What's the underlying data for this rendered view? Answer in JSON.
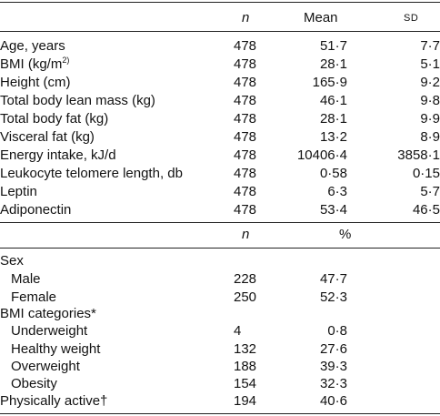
{
  "table1": {
    "headers": {
      "n": "n",
      "mean": "Mean",
      "sd": "SD"
    },
    "rows": [
      {
        "label": "Age, years",
        "n": "478",
        "mean": "51·7",
        "sd": "7·7"
      },
      {
        "label_pre": "BMI (kg/m",
        "label_sup": "2)",
        "label_post": ")",
        "n": "478",
        "mean": "28·1",
        "sd": "5·1"
      },
      {
        "label": "Height (cm)",
        "n": "478",
        "mean": "165·9",
        "sd": "9·2"
      },
      {
        "label": "Total body lean mass (kg)",
        "n": "478",
        "mean": "46·1",
        "sd": "9·8"
      },
      {
        "label": "Total body fat (kg)",
        "n": "478",
        "mean": "28·1",
        "sd": "9·9"
      },
      {
        "label": "Visceral fat (kg)",
        "n": "478",
        "mean": "13·2",
        "sd": "8·9"
      },
      {
        "label": "Energy intake, kJ/d",
        "n": "478",
        "mean": "10406·4",
        "sd": "3858·1"
      },
      {
        "label": "Leukocyte telomere length, db",
        "n": "478",
        "mean": "0·58",
        "sd": "0·15"
      },
      {
        "label": "Leptin",
        "n": "478",
        "mean": "6·3",
        "sd": "5·7"
      },
      {
        "label": "Adiponectin",
        "n": "478",
        "mean": "53·4",
        "sd": "46·5"
      }
    ]
  },
  "table2": {
    "headers": {
      "n": "n",
      "pct": "%"
    },
    "sex_heading": "Sex",
    "sex": [
      {
        "label": "Male",
        "n": "228",
        "pct": "47·7"
      },
      {
        "label": "Female",
        "n": "250",
        "pct": "52·3"
      }
    ],
    "bmi_heading": "BMI categories*",
    "bmi": [
      {
        "label": "Underweight",
        "n": "4",
        "pct": "0·8"
      },
      {
        "label": "Healthy weight",
        "n": "132",
        "pct": "27·6"
      },
      {
        "label": "Overweight",
        "n": "188",
        "pct": "39·3"
      },
      {
        "label": "Obesity",
        "n": "154",
        "pct": "32·3"
      }
    ],
    "active": {
      "label": "Physically active†",
      "n": "194",
      "pct": "40·6"
    }
  }
}
